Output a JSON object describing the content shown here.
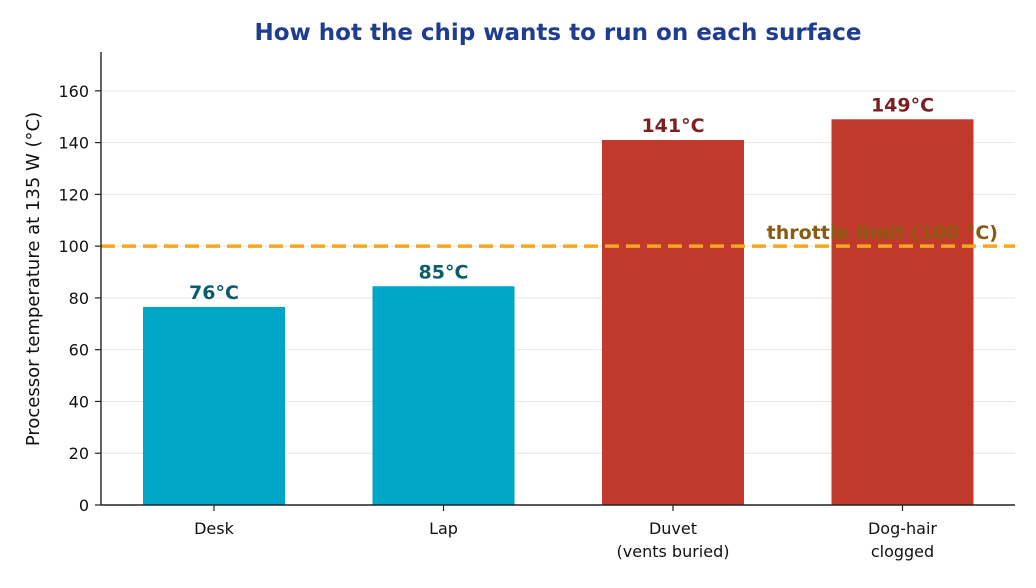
{
  "chart_data": {
    "type": "bar",
    "title": "How hot the chip wants to run on each surface",
    "xlabel": "",
    "ylabel": "Processor temperature at 135 W  (°C)",
    "categories": [
      [
        "Desk"
      ],
      [
        "Lap"
      ],
      [
        "Duvet",
        "(vents buried)"
      ],
      [
        "Dog-hair",
        "clogged"
      ]
    ],
    "values": [
      76.5,
      84.5,
      141,
      149
    ],
    "value_labels": [
      "76°C",
      "85°C",
      "141°C",
      "149°C"
    ],
    "ylim": [
      0,
      175
    ],
    "yticks": [
      0,
      20,
      40,
      60,
      80,
      100,
      120,
      140,
      160
    ],
    "grid": "horizontal",
    "reference_line": {
      "value": 100,
      "label": "throttle limit (100 °C)",
      "color": "#f5a623",
      "style": "dashed"
    },
    "colors": {
      "below_limit_bar": "#00a6c6",
      "above_limit_bar": "#c0392b",
      "below_limit_label": "#0d5c6b",
      "above_limit_label": "#7b2020",
      "reference_label": "#8a5a10",
      "title": "#1f3d8f",
      "grid": "#e6e6e6",
      "axis": "#222222"
    }
  }
}
